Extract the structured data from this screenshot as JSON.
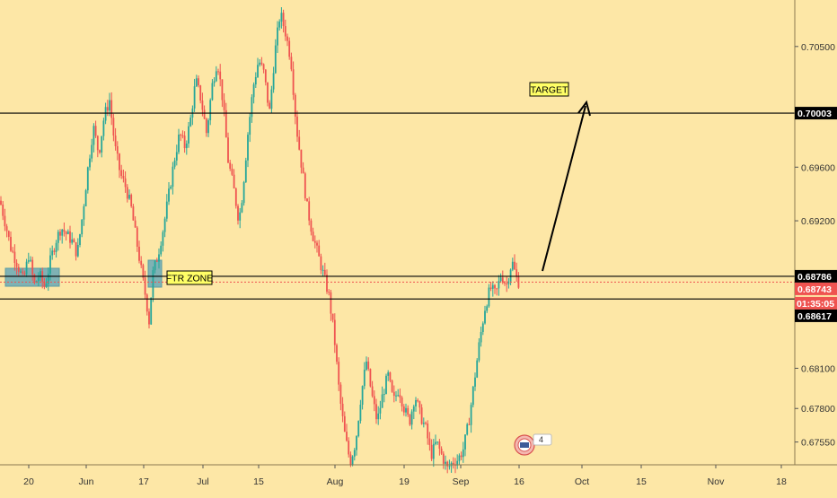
{
  "chart_data": {
    "type": "candlestick",
    "symbol_hint": "price chart",
    "y_axis": {
      "ticks": [
        "0.70500",
        "0.69600",
        "0.69200",
        "0.68100",
        "0.67800",
        "0.67550"
      ],
      "ylim": [
        0.6738,
        0.7082
      ]
    },
    "x_axis": {
      "ticks": [
        "20",
        "Jun",
        "17",
        "Jul",
        "15",
        "Aug",
        "19",
        "Sep",
        "16",
        "Oct",
        "15",
        "Nov",
        "18"
      ]
    },
    "levels": [
      {
        "name": "target",
        "price": 0.70003,
        "label": "0.70003",
        "color": "#000000"
      },
      {
        "name": "zone-top",
        "price": 0.68786,
        "label": "0.68786",
        "color": "#000000"
      },
      {
        "name": "current",
        "price": 0.68743,
        "label": "0.68743",
        "color": "#ef5350"
      },
      {
        "name": "zone-bottom",
        "price": 0.68617,
        "label": "0.68617",
        "color": "#000000"
      }
    ],
    "countdown": "01:35:05",
    "annotations": {
      "target_label": "TARGET",
      "zone_label": "FTR ZONE",
      "event_count": "4"
    },
    "price_path": [
      [
        0,
        0.6935
      ],
      [
        6,
        0.6918
      ],
      [
        12,
        0.69
      ],
      [
        18,
        0.689
      ],
      [
        26,
        0.6875
      ],
      [
        32,
        0.6895
      ],
      [
        38,
        0.6872
      ],
      [
        44,
        0.688
      ],
      [
        50,
        0.687
      ],
      [
        56,
        0.689
      ],
      [
        62,
        0.6905
      ],
      [
        68,
        0.6915
      ],
      [
        74,
        0.691
      ],
      [
        80,
        0.6905
      ],
      [
        86,
        0.6895
      ],
      [
        92,
        0.6925
      ],
      [
        98,
        0.696
      ],
      [
        104,
        0.699
      ],
      [
        110,
        0.697
      ],
      [
        116,
        0.6998
      ],
      [
        122,
        0.701
      ],
      [
        128,
        0.6975
      ],
      [
        134,
        0.6955
      ],
      [
        140,
        0.6945
      ],
      [
        146,
        0.693
      ],
      [
        152,
        0.6905
      ],
      [
        158,
        0.688
      ],
      [
        163,
        0.686
      ],
      [
        166,
        0.6845
      ],
      [
        170,
        0.688
      ],
      [
        176,
        0.6895
      ],
      [
        182,
        0.6915
      ],
      [
        188,
        0.694
      ],
      [
        194,
        0.6965
      ],
      [
        200,
        0.6985
      ],
      [
        206,
        0.6975
      ],
      [
        212,
        0.6995
      ],
      [
        218,
        0.7025
      ],
      [
        224,
        0.701
      ],
      [
        230,
        0.6985
      ],
      [
        236,
        0.702
      ],
      [
        242,
        0.704
      ],
      [
        248,
        0.701
      ],
      [
        254,
        0.6965
      ],
      [
        260,
        0.6945
      ],
      [
        266,
        0.692
      ],
      [
        270,
        0.694
      ],
      [
        276,
        0.6985
      ],
      [
        282,
        0.702
      ],
      [
        288,
        0.704
      ],
      [
        294,
        0.703
      ],
      [
        300,
        0.7
      ],
      [
        306,
        0.7045
      ],
      [
        312,
        0.7075
      ],
      [
        318,
        0.706
      ],
      [
        324,
        0.704
      ],
      [
        330,
        0.699
      ],
      [
        336,
        0.696
      ],
      [
        342,
        0.693
      ],
      [
        348,
        0.691
      ],
      [
        354,
        0.6895
      ],
      [
        360,
        0.688
      ],
      [
        366,
        0.6865
      ],
      [
        372,
        0.6835
      ],
      [
        378,
        0.679
      ],
      [
        384,
        0.676
      ],
      [
        390,
        0.674
      ],
      [
        396,
        0.6755
      ],
      [
        402,
        0.679
      ],
      [
        408,
        0.6815
      ],
      [
        414,
        0.679
      ],
      [
        420,
        0.677
      ],
      [
        426,
        0.679
      ],
      [
        432,
        0.6805
      ],
      [
        438,
        0.6785
      ],
      [
        444,
        0.6795
      ],
      [
        450,
        0.678
      ],
      [
        456,
        0.677
      ],
      [
        462,
        0.679
      ],
      [
        468,
        0.6775
      ],
      [
        474,
        0.6765
      ],
      [
        480,
        0.6745
      ],
      [
        486,
        0.6755
      ],
      [
        492,
        0.6745
      ],
      [
        498,
        0.6735
      ],
      [
        504,
        0.674
      ],
      [
        510,
        0.6742
      ],
      [
        516,
        0.675
      ],
      [
        522,
        0.677
      ],
      [
        528,
        0.68
      ],
      [
        534,
        0.683
      ],
      [
        540,
        0.6855
      ],
      [
        546,
        0.687
      ],
      [
        552,
        0.6865
      ],
      [
        558,
        0.688
      ],
      [
        564,
        0.6872
      ],
      [
        570,
        0.689
      ],
      [
        576,
        0.6875
      ],
      [
        578,
        0.6874
      ]
    ]
  }
}
